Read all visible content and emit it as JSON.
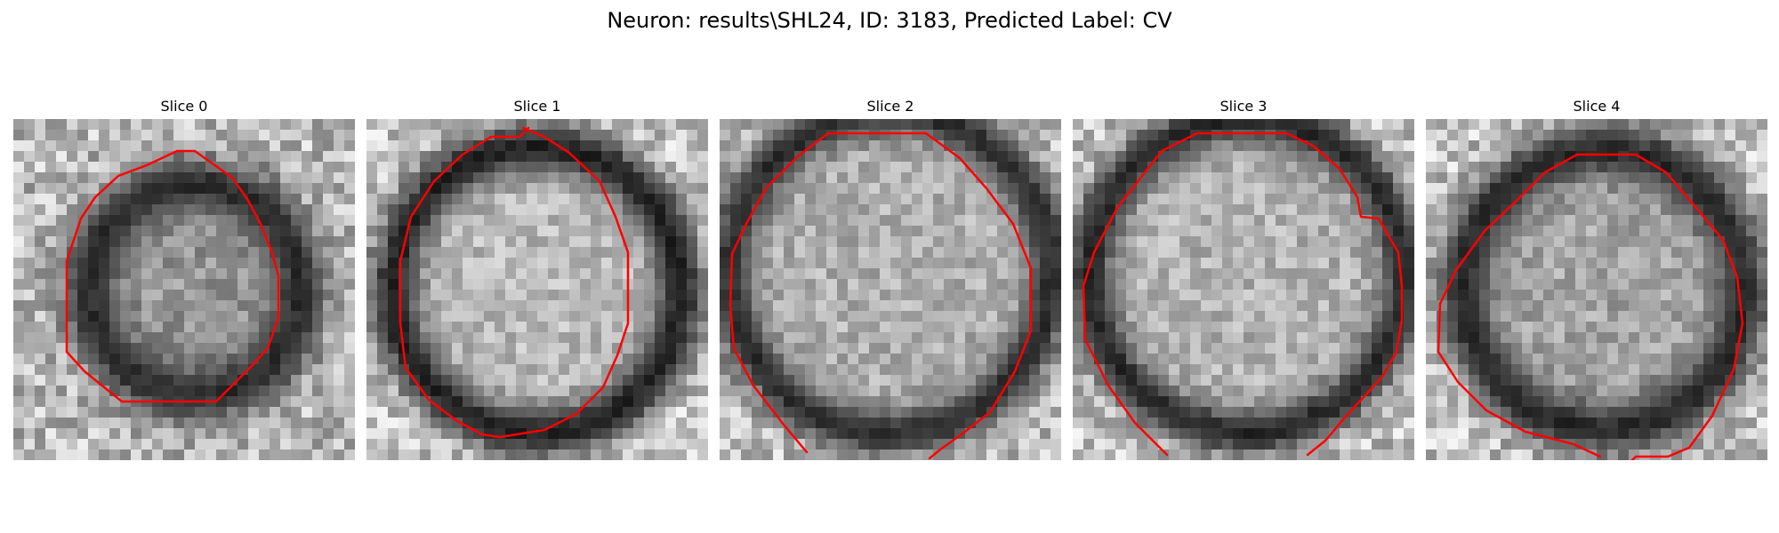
{
  "figure": {
    "title": "Neuron: results\\SHL24, ID: 3183, Predicted Label: CV",
    "outline_color": "#ff0000",
    "colormap": "grayscale"
  },
  "panels": [
    {
      "title": "Slice 0"
    },
    {
      "title": "Slice 1"
    },
    {
      "title": "Slice 2"
    },
    {
      "title": "Slice 3"
    },
    {
      "title": "Slice 4"
    }
  ]
}
